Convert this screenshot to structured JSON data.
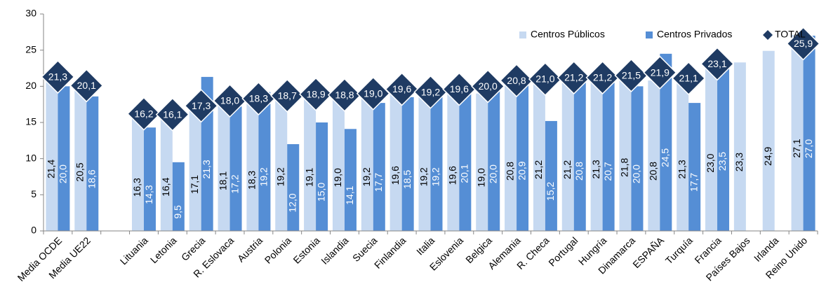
{
  "chart_data": {
    "type": "bar",
    "categories": [
      "Media OCDE",
      "Media UE22",
      null,
      "Lituania",
      "Letonia",
      "Grecia",
      "R. Eslovaca",
      "Austria",
      "Polonia",
      "Estonia",
      "Islandia",
      "Suecia",
      "Finlandia",
      "Italia",
      "Eslovenia",
      "Belgica",
      "Alemania",
      "R. Checa",
      "Portugal",
      "Hungría",
      "Dinamarca",
      "ESPAÑA",
      "Turquía",
      "Francia",
      "Países Bajos",
      "Irlanda",
      "Reino Unido"
    ],
    "series": [
      {
        "name": "Centros Públicos",
        "color": "#c6d9f1",
        "mark": "bar",
        "label_color": "#000000",
        "values": [
          21.4,
          20.5,
          null,
          16.3,
          16.4,
          17.1,
          18.1,
          18.3,
          19.2,
          19.1,
          19.0,
          19.2,
          19.6,
          19.2,
          19.6,
          19.0,
          20.8,
          21.2,
          21.2,
          21.3,
          21.8,
          20.8,
          21.3,
          23.0,
          23.3,
          24.9,
          27.1
        ],
        "value_labels": [
          "21,4",
          "20,5",
          null,
          "16,3",
          "16,4",
          "17,1",
          "18,1",
          "18,3",
          "19,2",
          "19,1",
          "19,0",
          "19,2",
          "19,6",
          "19,2",
          "19,6",
          "19,0",
          "20,8",
          "21,2",
          "21,2",
          "21,3",
          "21,8",
          "20,8",
          "21,3",
          "23,0",
          "23,3",
          "24,9",
          "27,1"
        ]
      },
      {
        "name": "Centros Privados",
        "color": "#558ed5",
        "mark": "bar",
        "label_color": "#ffffff",
        "values": [
          20.0,
          18.6,
          null,
          14.3,
          9.5,
          21.3,
          17.2,
          19.2,
          12.0,
          15.0,
          14.1,
          17.7,
          18.5,
          19.2,
          20.1,
          20.0,
          20.9,
          15.2,
          20.8,
          20.7,
          20.0,
          24.5,
          17.7,
          23.5,
          null,
          null,
          27.0
        ],
        "value_labels": [
          "20,0",
          "18,6",
          null,
          "14,3",
          "9,5",
          "21,3",
          "17,2",
          "19,2",
          "12,0",
          "15,0",
          "14,1",
          "17,7",
          "18,5",
          "19,2",
          "20,1",
          "20,0",
          "20,9",
          "15,2",
          "20,8",
          "20,7",
          "20,0",
          "24,5",
          "17,7",
          "23,5",
          null,
          null,
          "27,0"
        ]
      },
      {
        "name": "TOTAL",
        "color": "#1f3b63",
        "mark": "diamond",
        "label_color": "#ffffff",
        "values": [
          21.3,
          20.1,
          null,
          16.2,
          16.1,
          17.3,
          18.0,
          18.3,
          18.7,
          18.9,
          18.8,
          19.0,
          19.6,
          19.2,
          19.6,
          20.0,
          20.8,
          21.0,
          21.2,
          21.2,
          21.5,
          21.9,
          21.1,
          23.1,
          null,
          null,
          25.9
        ],
        "value_labels": [
          "21,3",
          "20,1",
          null,
          "16,2",
          "16,1",
          "17,3",
          "18,0",
          "18,3",
          "18,7",
          "18,9",
          "18,8",
          "19,0",
          "19,6",
          "19,2",
          "19,6",
          "20,0",
          "20,8",
          "21,0",
          "21,2",
          "21,2",
          "21,5",
          "21,9",
          "21,1",
          "23,1",
          null,
          null,
          "25,9"
        ]
      }
    ],
    "ylim": [
      0,
      30
    ],
    "yticks": [
      0,
      5,
      10,
      15,
      20,
      25,
      30
    ],
    "grid": false,
    "legend": "top-right"
  }
}
